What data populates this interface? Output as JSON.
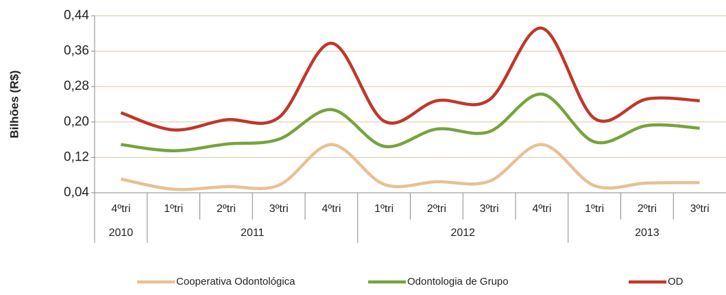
{
  "chart_data": {
    "type": "line",
    "y_label": "Bilhões (R$)",
    "categories": [
      "4ºtri",
      "1ºtri",
      "2ºtri",
      "3ºtri",
      "4ºtri",
      "1ºtri",
      "2ºtri",
      "3ºtri",
      "4ºtri",
      "1ºtri",
      "2ºtri",
      "3ºtri"
    ],
    "category_groups": [
      {
        "label": "2010",
        "span": 1
      },
      {
        "label": "2011",
        "span": 4
      },
      {
        "label": "2012",
        "span": 4
      },
      {
        "label": "2013",
        "span": 3
      }
    ],
    "series": [
      {
        "name": "Cooperativa Odontológica",
        "color": "#e6c193",
        "values": [
          0.071,
          0.048,
          0.054,
          0.057,
          0.149,
          0.059,
          0.065,
          0.066,
          0.149,
          0.056,
          0.062,
          0.063
        ]
      },
      {
        "name": "Odontologia de Grupo",
        "color": "#77a33e",
        "values": [
          0.149,
          0.135,
          0.15,
          0.161,
          0.228,
          0.145,
          0.184,
          0.178,
          0.263,
          0.155,
          0.192,
          0.186
        ]
      },
      {
        "name": "OD",
        "color": "#c0372b",
        "values": [
          0.221,
          0.182,
          0.205,
          0.21,
          0.378,
          0.202,
          0.248,
          0.25,
          0.412,
          0.208,
          0.252,
          0.248
        ]
      }
    ],
    "ylim": [
      0.04,
      0.44
    ],
    "yticks": [
      {
        "value": 0.04,
        "label": "0,04"
      },
      {
        "value": 0.12,
        "label": "0,12"
      },
      {
        "value": 0.2,
        "label": "0,20"
      },
      {
        "value": 0.28,
        "label": "0,28"
      },
      {
        "value": 0.36,
        "label": "0,36"
      },
      {
        "value": 0.44,
        "label": "0,44"
      }
    ],
    "grid": true,
    "smooth": true,
    "legend": "bottom"
  }
}
